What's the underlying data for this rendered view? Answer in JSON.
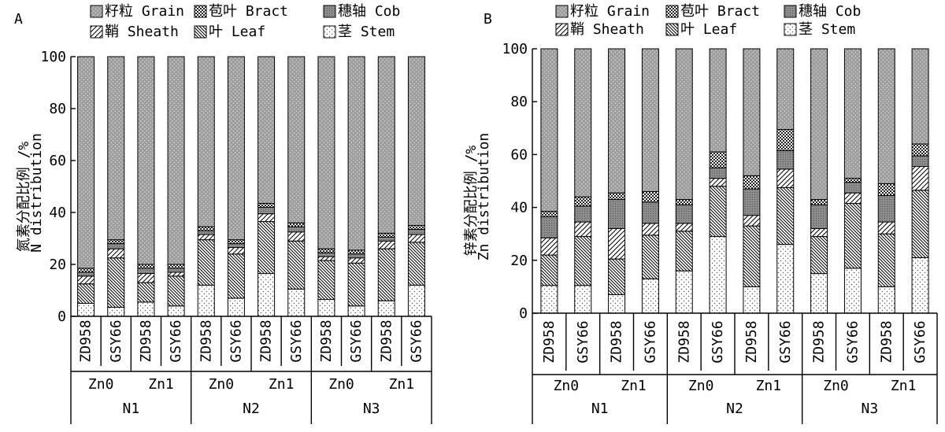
{
  "chart_data": [
    {
      "panel_label": "A",
      "type": "bar",
      "stacked": true,
      "ylabel_lines": [
        "氮素分配比例 /%",
        "N distribution"
      ],
      "ylim": [
        0,
        100
      ],
      "yticks": [
        0,
        20,
        40,
        60,
        80,
        100
      ],
      "categories": [
        "ZD958",
        "GSY66",
        "ZD958",
        "GSY66",
        "ZD958",
        "GSY66",
        "ZD958",
        "GSY66",
        "ZD958",
        "GSY66",
        "ZD958",
        "GSY66"
      ],
      "zn_groups": [
        {
          "label": "Zn0",
          "start": 0,
          "end": 1
        },
        {
          "label": "Zn1",
          "start": 2,
          "end": 3
        },
        {
          "label": "Zn0",
          "start": 4,
          "end": 5
        },
        {
          "label": "Zn1",
          "start": 6,
          "end": 7
        },
        {
          "label": "Zn0",
          "start": 8,
          "end": 9
        },
        {
          "label": "Zn1",
          "start": 10,
          "end": 11
        }
      ],
      "n_groups": [
        {
          "label": "N1",
          "start": 0,
          "end": 3
        },
        {
          "label": "N2",
          "start": 4,
          "end": 7
        },
        {
          "label": "N3",
          "start": 8,
          "end": 11
        }
      ],
      "legend_rows": [
        [
          "籽粒 Grain",
          "苞叶 Bract",
          "穗轴 Cob"
        ],
        [
          "鞘 Sheath",
          "叶 Leaf",
          "茎 Stem"
        ]
      ],
      "series": [
        {
          "name": "茎 Stem",
          "values": [
            5,
            3.5,
            5.5,
            4,
            12,
            7,
            16.5,
            10.5,
            6.5,
            4,
            6,
            12
          ]
        },
        {
          "name": "叶 Leaf",
          "values": [
            7.5,
            19,
            7.5,
            11.5,
            17.5,
            17,
            20,
            18.5,
            15,
            16.5,
            20,
            16.5
          ]
        },
        {
          "name": "鞘 Sheath",
          "values": [
            3,
            3.5,
            3.5,
            1.5,
            2,
            2.5,
            3,
            3.5,
            1.5,
            2,
            3,
            3
          ]
        },
        {
          "name": "穗轴 Cob",
          "values": [
            1.5,
            2,
            2,
            1.5,
            1.5,
            1.5,
            2.5,
            2,
            1.5,
            1.5,
            1.5,
            2
          ]
        },
        {
          "name": "苞叶 Bract",
          "values": [
            1.5,
            1.5,
            1.5,
            1.5,
            1.5,
            1.5,
            1.5,
            1.5,
            1.5,
            1.5,
            1.5,
            1.5
          ]
        },
        {
          "name": "籽粒 Grain",
          "values": [
            81.5,
            70.5,
            80,
            80,
            65.5,
            70.5,
            56.5,
            64,
            74,
            74.5,
            68,
            65
          ]
        }
      ]
    },
    {
      "panel_label": "B",
      "type": "bar",
      "stacked": true,
      "ylabel_lines": [
        "锌素分配比例 /%",
        "Zn distribution"
      ],
      "ylim": [
        0,
        100
      ],
      "yticks": [
        0,
        20,
        40,
        60,
        80,
        100
      ],
      "categories": [
        "ZD958",
        "GSY66",
        "ZD958",
        "GSY66",
        "ZD958",
        "GSY66",
        "ZD958",
        "GSY66",
        "ZD958",
        "GSY66",
        "ZD958",
        "GSY66"
      ],
      "zn_groups": [
        {
          "label": "Zn0",
          "start": 0,
          "end": 1
        },
        {
          "label": "Zn1",
          "start": 2,
          "end": 3
        },
        {
          "label": "Zn0",
          "start": 4,
          "end": 5
        },
        {
          "label": "Zn1",
          "start": 6,
          "end": 7
        },
        {
          "label": "Zn0",
          "start": 8,
          "end": 9
        },
        {
          "label": "Zn1",
          "start": 10,
          "end": 11
        }
      ],
      "n_groups": [
        {
          "label": "N1",
          "start": 0,
          "end": 3
        },
        {
          "label": "N2",
          "start": 4,
          "end": 7
        },
        {
          "label": "N3",
          "start": 8,
          "end": 11
        }
      ],
      "legend_rows": [
        [
          "籽粒 Grain",
          "苞叶 Bract",
          "穗轴 Cob"
        ],
        [
          "鞘 Sheath",
          "叶 Leaf",
          "茎 Stem"
        ]
      ],
      "series": [
        {
          "name": "茎 Stem",
          "values": [
            10.5,
            10.5,
            7,
            13,
            16,
            29,
            10,
            26,
            15,
            17,
            10,
            21
          ]
        },
        {
          "name": "叶 Leaf",
          "values": [
            11.5,
            18.5,
            13.5,
            16.5,
            15,
            19,
            23,
            21.5,
            14,
            24.5,
            20,
            25.5
          ]
        },
        {
          "name": "鞘 Sheath",
          "values": [
            6.5,
            5.5,
            11.5,
            4.5,
            3,
            3,
            4,
            7,
            3,
            4,
            4.5,
            9
          ]
        },
        {
          "name": "穗轴 Cob",
          "values": [
            8,
            6,
            11,
            8,
            7,
            4,
            10,
            7,
            9,
            4,
            10,
            4
          ]
        },
        {
          "name": "苞叶 Bract",
          "values": [
            2,
            3.5,
            2.5,
            4,
            2,
            6,
            5,
            8,
            2,
            1.5,
            4.5,
            4.5
          ]
        },
        {
          "name": "籽粒 Grain",
          "values": [
            61.5,
            56,
            54.5,
            54,
            57,
            39,
            48,
            30.5,
            57,
            49,
            51,
            36
          ]
        }
      ]
    }
  ]
}
